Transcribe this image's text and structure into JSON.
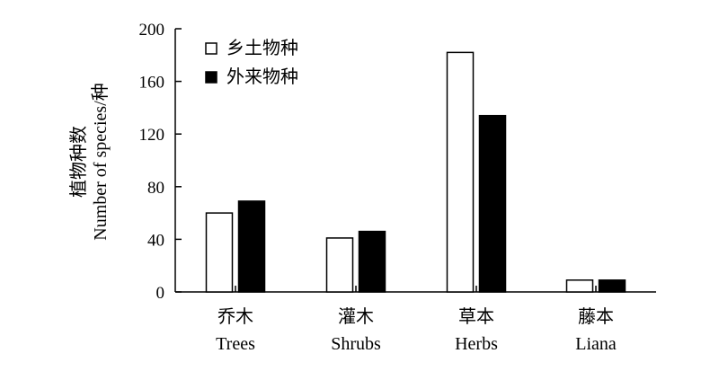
{
  "chart_data": {
    "type": "bar",
    "categories": [
      {
        "cn": "乔木",
        "en": "Trees"
      },
      {
        "cn": "灌木",
        "en": "Shrubs"
      },
      {
        "cn": "草本",
        "en": "Herbs"
      },
      {
        "cn": "藤本",
        "en": "Liana"
      }
    ],
    "series": [
      {
        "name": "乡土物种",
        "values": [
          60,
          41,
          182,
          9
        ],
        "fill": "#ffffff"
      },
      {
        "name": "外来物种",
        "values": [
          69,
          46,
          134,
          9
        ],
        "fill": "#000000"
      }
    ],
    "ylabel_cn": "植物种数",
    "ylabel_en": "Number of species/种",
    "ylim": [
      0,
      200
    ],
    "yticks": [
      0,
      40,
      80,
      120,
      160,
      200
    ],
    "grid": false,
    "legend_position": "top-left"
  }
}
